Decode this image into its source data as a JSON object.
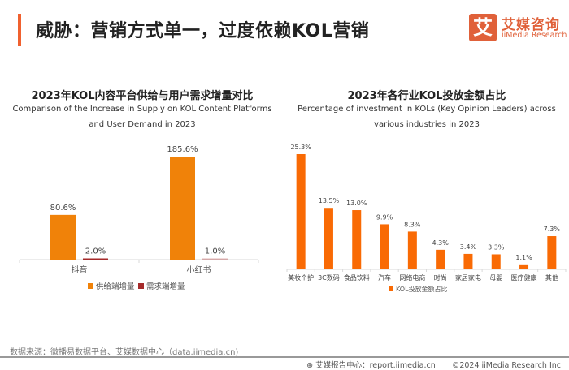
{
  "header": {
    "title": "威胁：营销方式单一，过度依赖KOL营销",
    "logo_glyph": "艾",
    "logo_cn": "艾媒咨询",
    "logo_en": "iiMedia Research"
  },
  "chart_data": [
    {
      "type": "bar",
      "title": "2023年KOL内容平台供给与用户需求增量对比",
      "subtitle_line1": "Comparison of the Increase in Supply on KOL Content Platforms",
      "subtitle_line2": "and User Demand in 2023",
      "categories": [
        "抖音",
        "小红书"
      ],
      "series": [
        {
          "name": "供给端增量",
          "color": "#f08209",
          "values": [
            80.6,
            185.6
          ],
          "labels": [
            "80.6%",
            "185.6%"
          ]
        },
        {
          "name": "需求端增量",
          "color": "#a52a2a",
          "values": [
            2.0,
            1.0
          ],
          "labels": [
            "2.0%",
            "1.0%"
          ]
        }
      ],
      "xlabel": "",
      "ylabel": "",
      "ylim": [
        0,
        190
      ],
      "grid": false,
      "legend": "bottom"
    },
    {
      "type": "bar",
      "title": "2023年各行业KOL投放金额占比",
      "subtitle_line1": "Percentage of investment in KOLs (Key Opinion Leaders) across",
      "subtitle_line2": "various industries in 2023",
      "categories": [
        "美妆个护",
        "3C数码",
        "食品饮料",
        "汽车",
        "网络电商",
        "时尚",
        "家居家电",
        "母婴",
        "医疗健康",
        "其他"
      ],
      "series": [
        {
          "name": "KOL投放金额占比",
          "color": "#f96a04",
          "values": [
            25.3,
            13.5,
            13.0,
            9.9,
            8.3,
            4.3,
            3.4,
            3.3,
            1.1,
            7.3
          ],
          "labels": [
            "25.3%",
            "13.5%",
            "13.0%",
            "9.9%",
            "8.3%",
            "4.3%",
            "3.4%",
            "3.3%",
            "1.1%",
            "7.3%"
          ]
        }
      ],
      "xlabel": "",
      "ylabel": "",
      "ylim": [
        0,
        26
      ],
      "grid": false,
      "legend": "bottom"
    }
  ],
  "footer": {
    "source": "数据来源：微播易数据平台、艾媒数据中心（data.iimedia.cn)",
    "report_center": "艾媒报告中心：report.iimedia.cn",
    "copyright": "©2024  iiMedia Research  Inc"
  }
}
